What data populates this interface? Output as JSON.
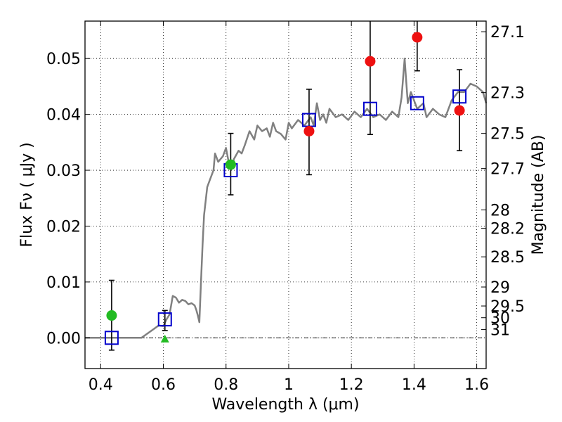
{
  "chart_data": {
    "type": "scatter",
    "title": "",
    "xlabel": "Wavelength  λ (μm)",
    "ylabel": "Flux  Fν  ( μJy )",
    "ylabel_right": "Magnitude (AB)",
    "xlim": [
      0.35,
      1.63
    ],
    "ylim": [
      -0.0055,
      0.0567
    ],
    "grid": true,
    "x_ticks": [
      {
        "value": 0.4,
        "label": "0.4"
      },
      {
        "value": 0.6,
        "label": "0.6"
      },
      {
        "value": 0.8,
        "label": "0.8"
      },
      {
        "value": 1.0,
        "label": "1"
      },
      {
        "value": 1.2,
        "label": "1.2"
      },
      {
        "value": 1.4,
        "label": "1.4"
      },
      {
        "value": 1.6,
        "label": "1.6"
      }
    ],
    "y_ticks": [
      {
        "value": 0.0,
        "label": "0.00"
      },
      {
        "value": 0.01,
        "label": "0.01"
      },
      {
        "value": 0.02,
        "label": "0.02"
      },
      {
        "value": 0.03,
        "label": "0.03"
      },
      {
        "value": 0.04,
        "label": "0.04"
      },
      {
        "value": 0.05,
        "label": "0.05"
      }
    ],
    "right_ticks": [
      {
        "flux": 0.0548,
        "label": "27.1"
      },
      {
        "flux": 0.0439,
        "label": "27.3"
      },
      {
        "flux": 0.0366,
        "label": "27.5"
      },
      {
        "flux": 0.0303,
        "label": "27.7"
      },
      {
        "flux": 0.0229,
        "label": "28"
      },
      {
        "flux": 0.0196,
        "label": "28.2"
      },
      {
        "flux": 0.0145,
        "label": "28.5"
      },
      {
        "flux": 0.0091,
        "label": "29"
      },
      {
        "flux": 0.0057,
        "label": "29.5"
      },
      {
        "flux": 0.0036,
        "label": "30"
      },
      {
        "flux": 0.0015,
        "label": "31"
      }
    ],
    "series": [
      {
        "name": "model spectrum",
        "kind": "line",
        "color": "#808080",
        "points": [
          [
            0.35,
            0.0
          ],
          [
            0.53,
            0.0
          ],
          [
            0.55,
            0.0008
          ],
          [
            0.57,
            0.0016
          ],
          [
            0.585,
            0.0022
          ],
          [
            0.6,
            0.0021
          ],
          [
            0.61,
            0.0033
          ],
          [
            0.62,
            0.0042
          ],
          [
            0.63,
            0.0075
          ],
          [
            0.64,
            0.0072
          ],
          [
            0.65,
            0.0063
          ],
          [
            0.66,
            0.0068
          ],
          [
            0.67,
            0.0066
          ],
          [
            0.68,
            0.006
          ],
          [
            0.69,
            0.0062
          ],
          [
            0.7,
            0.0058
          ],
          [
            0.705,
            0.005
          ],
          [
            0.71,
            0.004
          ],
          [
            0.715,
            0.0028
          ],
          [
            0.72,
            0.01
          ],
          [
            0.725,
            0.0165
          ],
          [
            0.73,
            0.022
          ],
          [
            0.74,
            0.027
          ],
          [
            0.75,
            0.0285
          ],
          [
            0.76,
            0.03
          ],
          [
            0.765,
            0.033
          ],
          [
            0.775,
            0.0315
          ],
          [
            0.79,
            0.0325
          ],
          [
            0.8,
            0.034
          ],
          [
            0.81,
            0.031
          ],
          [
            0.82,
            0.0305
          ],
          [
            0.825,
            0.032
          ],
          [
            0.84,
            0.0335
          ],
          [
            0.85,
            0.033
          ],
          [
            0.86,
            0.0345
          ],
          [
            0.875,
            0.037
          ],
          [
            0.89,
            0.0355
          ],
          [
            0.9,
            0.038
          ],
          [
            0.915,
            0.037
          ],
          [
            0.93,
            0.0375
          ],
          [
            0.94,
            0.036
          ],
          [
            0.95,
            0.0385
          ],
          [
            0.96,
            0.037
          ],
          [
            0.975,
            0.0365
          ],
          [
            0.99,
            0.0355
          ],
          [
            1.0,
            0.0385
          ],
          [
            1.01,
            0.0375
          ],
          [
            1.03,
            0.039
          ],
          [
            1.05,
            0.038
          ],
          [
            1.07,
            0.0395
          ],
          [
            1.08,
            0.038
          ],
          [
            1.09,
            0.042
          ],
          [
            1.1,
            0.039
          ],
          [
            1.11,
            0.04
          ],
          [
            1.12,
            0.0385
          ],
          [
            1.13,
            0.041
          ],
          [
            1.15,
            0.0395
          ],
          [
            1.17,
            0.04
          ],
          [
            1.19,
            0.039
          ],
          [
            1.21,
            0.0405
          ],
          [
            1.23,
            0.0395
          ],
          [
            1.25,
            0.041
          ],
          [
            1.27,
            0.0395
          ],
          [
            1.29,
            0.04
          ],
          [
            1.31,
            0.039
          ],
          [
            1.33,
            0.0405
          ],
          [
            1.35,
            0.0395
          ],
          [
            1.36,
            0.043
          ],
          [
            1.37,
            0.05
          ],
          [
            1.375,
            0.046
          ],
          [
            1.38,
            0.042
          ],
          [
            1.39,
            0.044
          ],
          [
            1.41,
            0.041
          ],
          [
            1.43,
            0.042
          ],
          [
            1.44,
            0.0395
          ],
          [
            1.46,
            0.041
          ],
          [
            1.48,
            0.04
          ],
          [
            1.5,
            0.0395
          ],
          [
            1.52,
            0.0425
          ],
          [
            1.54,
            0.044
          ],
          [
            1.56,
            0.044
          ],
          [
            1.58,
            0.0455
          ],
          [
            1.6,
            0.045
          ],
          [
            1.62,
            0.044
          ],
          [
            1.63,
            0.042
          ]
        ]
      },
      {
        "name": "model photometry",
        "kind": "open-square",
        "color": "#0000cc",
        "points": [
          [
            0.435,
            0.0
          ],
          [
            0.605,
            0.0033
          ],
          [
            0.815,
            0.03
          ],
          [
            1.065,
            0.039
          ],
          [
            1.26,
            0.041
          ],
          [
            1.41,
            0.042
          ],
          [
            1.545,
            0.0432
          ]
        ]
      },
      {
        "name": "observed (green)",
        "kind": "circle",
        "color": "#22bb22",
        "points": [
          [
            0.435,
            0.004
          ],
          [
            0.815,
            0.031
          ]
        ]
      },
      {
        "name": "upper limit",
        "kind": "triangle",
        "color": "#22bb22",
        "points": [
          [
            0.605,
            -0.0002
          ]
        ]
      },
      {
        "name": "observed (red)",
        "kind": "circle",
        "color": "#ee1111",
        "points": [
          [
            1.065,
            0.037
          ],
          [
            1.26,
            0.0495
          ],
          [
            1.41,
            0.0538
          ],
          [
            1.545,
            0.0407
          ]
        ]
      },
      {
        "name": "error bars",
        "kind": "errorbar",
        "color": "#000000",
        "points": [
          [
            0.435,
            -0.0022,
            0.0103
          ],
          [
            0.605,
            0.0013,
            0.0049
          ],
          [
            0.815,
            0.0256,
            0.0366
          ],
          [
            1.065,
            0.0292,
            0.0445
          ],
          [
            1.26,
            0.0364,
            0.058
          ],
          [
            1.41,
            0.0478,
            0.058
          ],
          [
            1.545,
            0.0335,
            0.048
          ]
        ]
      }
    ]
  }
}
